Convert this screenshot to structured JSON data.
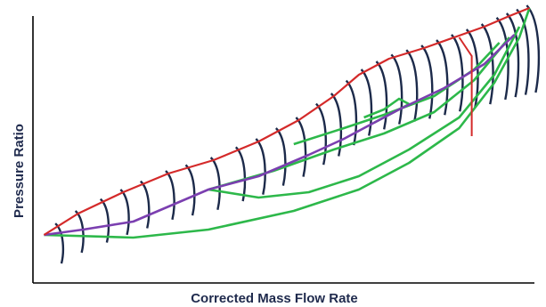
{
  "chart_data": {
    "type": "line",
    "title": "",
    "xlabel": "Corrected Mass Flow Rate",
    "ylabel": "Pressure Ratio",
    "xlim": [
      0,
      100
    ],
    "ylim": [
      0,
      100
    ],
    "grid": false,
    "legend": "none",
    "colors": {
      "speed_line": "#1c2a4a",
      "surge_line": "#d42a2a",
      "operating_line": "#7b3fb0",
      "efficiency_contour": "#2db84a",
      "axis": "#000000"
    },
    "series": [
      {
        "role": "surge_line",
        "x": [
          2.2,
          9,
          18,
          27,
          36,
          45,
          53,
          60,
          65,
          71,
          78,
          84,
          90,
          95,
          99
        ],
        "y": [
          18,
          26,
          34,
          41,
          46,
          53,
          61,
          70,
          78,
          84,
          88,
          92,
          96,
          100,
          103
        ]
      },
      {
        "role": "operating_line",
        "x": [
          2.2,
          10,
          20,
          35,
          45,
          55,
          62,
          68,
          73,
          82,
          90,
          96
        ],
        "y": [
          18,
          20,
          23,
          35,
          40,
          48,
          54,
          60,
          65,
          73,
          82,
          93
        ]
      },
      {
        "role": "efficiency_contour",
        "x": [
          2.2,
          20,
          35,
          52,
          65,
          75,
          85,
          92,
          97,
          99
        ],
        "y": [
          18,
          17,
          20,
          27,
          35,
          45,
          58,
          75,
          92,
          103
        ]
      },
      {
        "role": "efficiency_contour",
        "x": [
          35,
          45,
          55,
          65,
          75,
          85,
          92,
          97
        ],
        "y": [
          35,
          32,
          34,
          40,
          50,
          62,
          78,
          96
        ]
      },
      {
        "role": "efficiency_contour",
        "x": [
          35,
          48,
          60,
          70,
          80,
          88,
          95
        ],
        "y": [
          35,
          42,
          50,
          56,
          64,
          76,
          92
        ]
      },
      {
        "role": "efficiency_contour",
        "x": [
          52,
          62,
          70,
          80,
          88,
          93
        ],
        "y": [
          52,
          58,
          63,
          70,
          80,
          90
        ]
      },
      {
        "role": "efficiency_contour",
        "x": [
          66,
          70,
          73,
          75,
          68
        ],
        "y": [
          62,
          65,
          69,
          67,
          60
        ]
      }
    ],
    "speed_lines_at_surge_x": [
      5,
      9,
      14,
      18,
      22,
      27,
      31,
      36,
      41,
      45,
      49,
      53,
      57,
      60,
      63,
      66,
      69,
      72,
      75,
      78,
      81,
      84,
      87,
      90,
      93,
      95,
      97,
      99
    ]
  }
}
